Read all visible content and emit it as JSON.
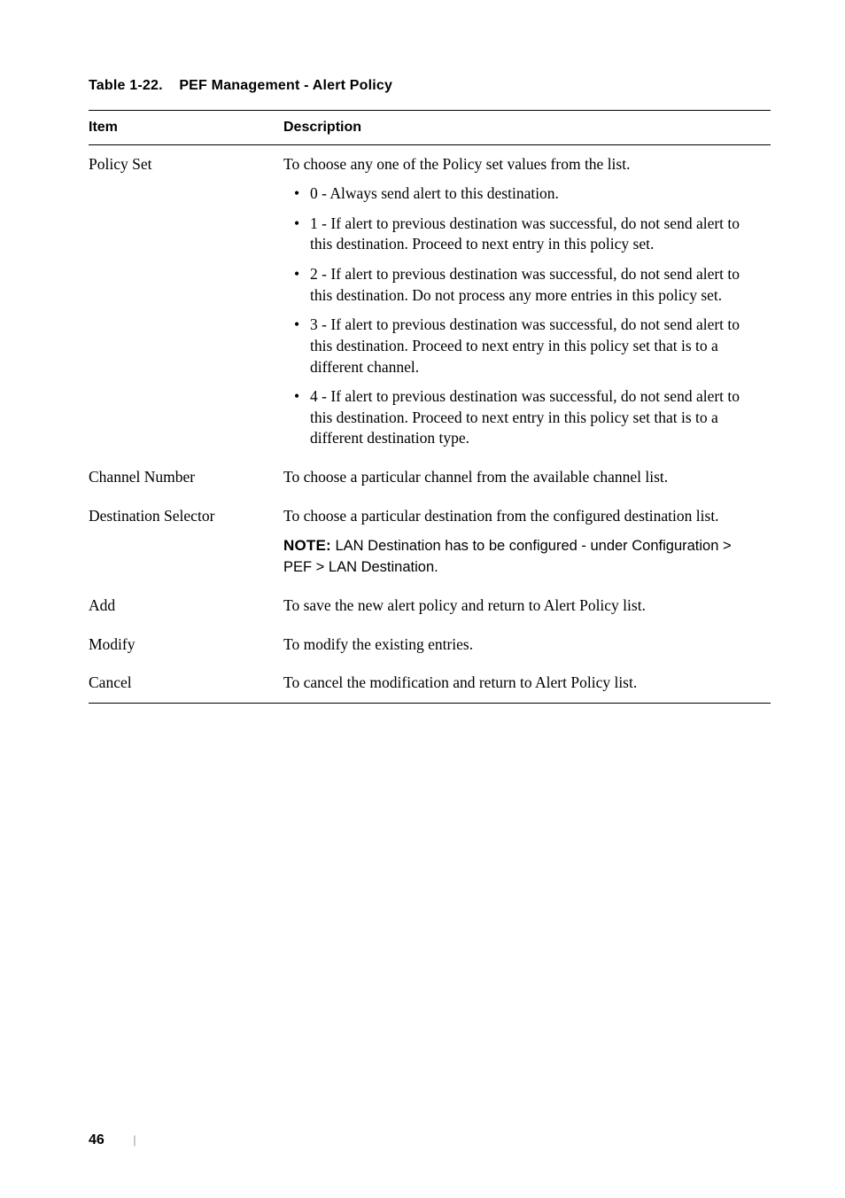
{
  "caption": {
    "label": "Table 1-22.",
    "title": "PEF Management - Alert Policy"
  },
  "headers": {
    "item": "Item",
    "description": "Description"
  },
  "rows": {
    "policy_set": {
      "item": "Policy Set",
      "intro": "To choose any one of the Policy set values from the list.",
      "bullets": [
        "0 - Always send alert to this destination.",
        "1 - If alert to previous destination was successful, do not send alert to this destination. Proceed to next entry in this policy set.",
        "2 - If alert to previous destination was successful, do not send alert to this destination. Do not process any more entries in this policy set.",
        "3 - If alert to previous destination was successful, do not send alert to this destination. Proceed to next entry in this policy set that is to a different channel.",
        "4 - If alert to previous destination was successful, do not send alert to this destination. Proceed to next entry in this policy set that is to a different destination type."
      ]
    },
    "channel_number": {
      "item": "Channel Number",
      "desc": "To choose a particular channel from the available channel list."
    },
    "destination_selector": {
      "item": "Destination Selector",
      "desc": "To choose a particular destination from the configured destination list.",
      "note_label": "NOTE:",
      "note_body": " LAN Destination has to be configured - under ",
      "note_path": "Configuration > PEF > LAN Destination."
    },
    "add": {
      "item": "Add",
      "desc": "To save the new alert policy and return to Alert Policy list."
    },
    "modify": {
      "item": "Modify",
      "desc": "To modify the existing entries."
    },
    "cancel": {
      "item": "Cancel",
      "desc": "To cancel the modification and return to Alert Policy list."
    }
  },
  "footer": {
    "page": "46",
    "divider": "|"
  }
}
